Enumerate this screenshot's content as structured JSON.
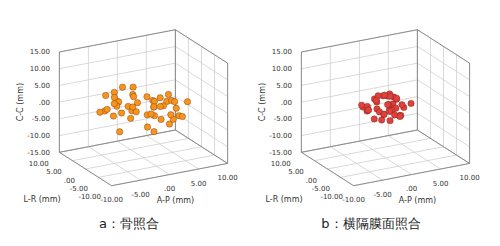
{
  "chart_data": [
    {
      "type": "scatter",
      "title": "a：骨照合",
      "color": "#f7941d",
      "grid": true,
      "x_label": "A-P (mm)",
      "y_label": "L-R (mm)",
      "z_label": "C-C (mm)",
      "xlim": [
        -10,
        10
      ],
      "ylim": [
        -10,
        10
      ],
      "zlim": [
        -15,
        15
      ],
      "xticks": [
        {
          "value": -10,
          "label": "-10.00"
        },
        {
          "value": -5,
          "label": "-5.00"
        },
        {
          "value": 0,
          "label": ".00"
        },
        {
          "value": 5,
          "label": "5.00"
        },
        {
          "value": 10,
          "label": "10.00"
        }
      ],
      "yticks": [
        {
          "value": -10,
          "label": "-10.00"
        },
        {
          "value": -5,
          "label": "-5.00"
        },
        {
          "value": 0,
          "label": ".00"
        },
        {
          "value": 5,
          "label": "5.00"
        },
        {
          "value": 10,
          "label": "10.00"
        }
      ],
      "zticks": [
        {
          "value": -15,
          "label": "-15.00"
        },
        {
          "value": -10,
          "label": "-10.00"
        },
        {
          "value": -5,
          "label": "-5.00"
        },
        {
          "value": 0,
          "label": ".00"
        },
        {
          "value": 5,
          "label": "5.00"
        },
        {
          "value": 10,
          "label": "10.00"
        },
        {
          "value": 15,
          "label": "15.00"
        }
      ],
      "x": [
        -2.1,
        1.5,
        -4.3,
        0.8,
        3.2,
        -1.0,
        2.6,
        -5.8,
        4.1,
        -0.3,
        1.9,
        -3.0,
        5.5,
        -2.7,
        0.2,
        -6.4,
        2.9,
        -1.6,
        3.8,
        -4.9,
        0.6,
        1.2,
        -2.3,
        6.1,
        -0.8,
        -3.6,
        2.2,
        4.7,
        -1.9,
        0.0,
        -7.2,
        3.4,
        -0.5,
        1.7,
        -2.9,
        5.0,
        -4.0,
        2.4,
        -1.3,
        0.9,
        7.0,
        -3.3,
        1.1,
        -5.1,
        3.0,
        -0.1,
        -2.5,
        4.4
      ],
      "y": [
        1.2,
        -3.4,
        0.5,
        4.1,
        -1.8,
        2.7,
        -0.6,
        1.9,
        -4.5,
        3.3,
        0.0,
        -2.2,
        1.4,
        5.2,
        -1.1,
        -0.3,
        2.5,
        -5.0,
        0.8,
        3.6,
        -2.7,
        -0.9,
        4.4,
        1.0,
        -3.1,
        0.4,
        2.0,
        -1.5,
        6.0,
        -4.2,
        0.7,
        -2.4,
        3.0,
        -0.2,
        1.6,
        -3.8,
        2.3,
        -6.1,
        0.9,
        4.8,
        -1.3,
        1.8,
        -4.0,
        0.2,
        -2.9,
        3.9,
        5.6,
        -0.7
      ],
      "z": [
        0.5,
        -2.3,
        3.1,
        -0.8,
        1.7,
        -4.2,
        2.4,
        0.0,
        -1.5,
        4.6,
        -3.0,
        1.2,
        -0.4,
        2.9,
        -5.3,
        1.8,
        -2.0,
        0.9,
        -1.1,
        3.5,
        -6.0,
        2.2,
        0.3,
        -2.7,
        5.1,
        -0.6,
        -3.6,
        1.0,
        -1.9,
        4.0,
        0.7,
        -4.8,
        2.6,
        -0.2,
        6.3,
        -2.4,
        1.4,
        -1.2,
        3.3,
        -3.9,
        0.1,
        -7.0,
        2.0,
        -0.9,
        4.4,
        -1.7,
        1.1,
        -3.2
      ]
    },
    {
      "type": "scatter",
      "title": "b：横隔膜面照合",
      "color": "#e0403f",
      "grid": true,
      "x_label": "A-P (mm)",
      "y_label": "L-R (mm)",
      "z_label": "C-C (mm)",
      "xlim": [
        -10,
        10
      ],
      "ylim": [
        -10,
        10
      ],
      "zlim": [
        -15,
        15
      ],
      "xticks": [
        {
          "value": -10,
          "label": "-10.00"
        },
        {
          "value": -5,
          "label": "-5.00"
        },
        {
          "value": 0,
          "label": ".00"
        },
        {
          "value": 5,
          "label": "5.00"
        },
        {
          "value": 10,
          "label": "10.00"
        }
      ],
      "yticks": [
        {
          "value": -10,
          "label": "-10.00"
        },
        {
          "value": -5,
          "label": "-5.00"
        },
        {
          "value": 0,
          "label": ".00"
        },
        {
          "value": 5,
          "label": "5.00"
        },
        {
          "value": 10,
          "label": "10.00"
        }
      ],
      "zticks": [
        {
          "value": -15,
          "label": "-15.00"
        },
        {
          "value": -10,
          "label": "-10.00"
        },
        {
          "value": -5,
          "label": "-5.00"
        },
        {
          "value": 0,
          "label": ".00"
        },
        {
          "value": 5,
          "label": "5.00"
        },
        {
          "value": 10,
          "label": "10.00"
        },
        {
          "value": 15,
          "label": "15.00"
        }
      ],
      "x": [
        -1.2,
        0.8,
        2.1,
        -0.4,
        1.5,
        -2.6,
        0.3,
        3.0,
        -1.8,
        0.0,
        1.1,
        -3.2,
        2.5,
        -0.9,
        0.6,
        -1.5,
        3.6,
        -0.2,
        1.8,
        -2.3,
        0.9,
        -1.0,
        2.8,
        -3.8,
        0.4,
        1.3,
        -0.7,
        2.2,
        -2.0,
        0.1,
        -1.4,
        4.0,
        -0.5,
        1.0,
        -2.8,
        0.7,
        2.4,
        -1.1,
        0.2,
        -0.3
      ],
      "y": [
        0.6,
        -1.1,
        1.9,
        -2.4,
        0.2,
        1.3,
        -0.5,
        2.7,
        -1.7,
        0.9,
        -3.0,
        1.5,
        -0.3,
        2.2,
        -1.2,
        0.0,
        1.0,
        -2.1,
        3.2,
        -0.8,
        0.4,
        -1.6,
        2.0,
        0.7,
        -2.6,
        1.2,
        -0.1,
        -1.4,
        2.5,
        -0.6,
        3.5,
        -0.9,
        1.7,
        -3.3,
        0.3,
        -0.2,
        1.1,
        -1.9,
        0.8,
        2.9
      ],
      "z": [
        -0.3,
        1.4,
        -1.9,
        0.7,
        2.6,
        -0.8,
        1.1,
        -2.5,
        0.2,
        3.1,
        -1.2,
        0.5,
        -3.0,
        1.8,
        -0.4,
        2.2,
        -1.6,
        0.0,
        1.3,
        -2.2,
        3.6,
        -0.9,
        0.6,
        1.7,
        -1.0,
        2.4,
        -3.4,
        0.9,
        -0.2,
        1.2,
        -2.0,
        0.4,
        2.9,
        -1.3,
        0.1,
        -4.0,
        1.5,
        -0.6,
        3.3,
        0.8
      ]
    }
  ]
}
